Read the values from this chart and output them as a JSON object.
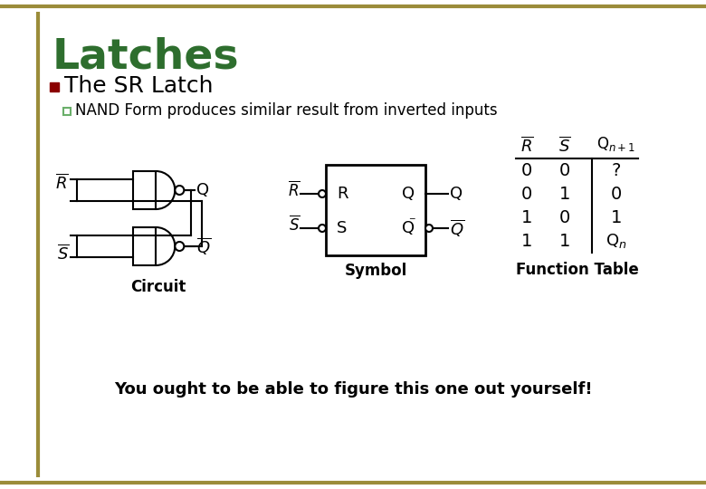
{
  "title": "Latches",
  "title_color": "#2E6E2E",
  "bullet1": "The SR Latch",
  "subbullet1": "NAND Form produces similar result from inverted inputs",
  "subbullet_marker_color": "#6AAF6A",
  "circuit_label": "Circuit",
  "symbol_label": "Symbol",
  "table_label": "Function Table",
  "bottom_text": "You ought to be able to figure this one out yourself!",
  "bg_color": "#FFFFFF",
  "border_color": "#9B8C3A",
  "bullet_marker_color": "#8B0000",
  "table_rows": [
    [
      "0",
      "0",
      "?"
    ],
    [
      "0",
      "1",
      "0"
    ],
    [
      "1",
      "0",
      "1"
    ],
    [
      "1",
      "1",
      "Q_n"
    ]
  ]
}
